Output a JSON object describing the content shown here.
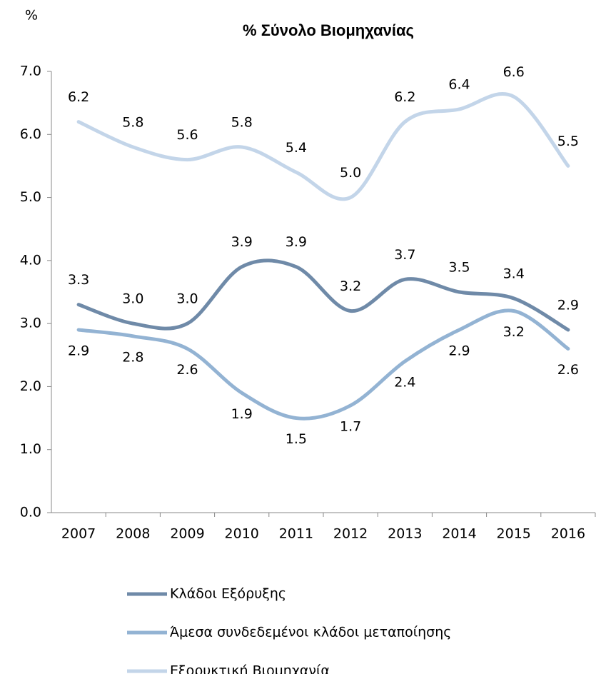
{
  "chart_data": {
    "type": "line",
    "title": "%  Σύνολο Βιομηχανίας",
    "y_label": "%",
    "categories": [
      "2007",
      "2008",
      "2009",
      "2010",
      "2011",
      "2012",
      "2013",
      "2014",
      "2015",
      "2016"
    ],
    "series": [
      {
        "name": "Κλάδοι Εξόρυξης",
        "color": "#6f8aa8",
        "values": [
          3.3,
          3.0,
          3.0,
          3.9,
          3.9,
          3.2,
          3.7,
          3.5,
          3.4,
          2.9
        ],
        "value_labels": [
          "3.3",
          "3.0",
          "3.0",
          "3.9",
          "3.9",
          "3.2",
          "3.7",
          "3.5",
          "3.4",
          "2.9"
        ]
      },
      {
        "name": "Άμεσα συνδεδεμένοι κλάδοι μεταποίησης",
        "color": "#93b3d3",
        "values": [
          2.9,
          2.8,
          2.6,
          1.9,
          1.5,
          1.7,
          2.4,
          2.9,
          3.2,
          2.6
        ],
        "value_labels": [
          "2.9",
          "2.8",
          "2.6",
          "1.9",
          "1.5",
          "1.7",
          "2.4",
          "2.9",
          "3.2",
          "2.6"
        ]
      },
      {
        "name": "Εξορυκτική Βιομηχανία",
        "color": "#c3d5e9",
        "values": [
          6.2,
          5.8,
          5.6,
          5.8,
          5.4,
          5.0,
          6.2,
          6.4,
          6.6,
          5.5
        ],
        "value_labels": [
          "6.2",
          "5.8",
          "5.6",
          "5.8",
          "5.4",
          "5.0",
          "6.2",
          "6.4",
          "6.6",
          "5.5"
        ]
      }
    ],
    "ylim": [
      0,
      7
    ],
    "yticks": [
      {
        "value": 0,
        "label": "0.0"
      },
      {
        "value": 1,
        "label": "1.0"
      },
      {
        "value": 2,
        "label": "2.0"
      },
      {
        "value": 3,
        "label": "3.0"
      },
      {
        "value": 4,
        "label": "4.0"
      },
      {
        "value": 5,
        "label": "5.0"
      },
      {
        "value": 6,
        "label": "6.0"
      },
      {
        "value": 7,
        "label": "7.0"
      }
    ],
    "grid": false,
    "legend": "bottom"
  }
}
